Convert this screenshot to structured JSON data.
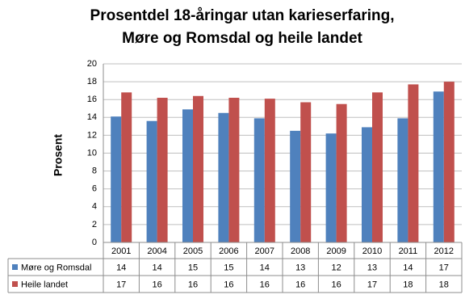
{
  "chart_data": {
    "type": "bar",
    "title": [
      "Prosentdel 18-åringar utan karieserfaring,",
      "Møre og Romsdal og heile landet"
    ],
    "y_label": "Prosent",
    "categories": [
      "2001",
      "2004",
      "2005",
      "2006",
      "2007",
      "2008",
      "2009",
      "2010",
      "2011",
      "2012"
    ],
    "series": [
      {
        "name": "Møre og Romsdal",
        "color": "#4f81bd",
        "values": [
          14.1,
          13.6,
          14.9,
          14.5,
          13.9,
          12.5,
          12.2,
          12.9,
          13.9,
          16.9
        ],
        "value_labels": [
          "14",
          "14",
          "15",
          "15",
          "14",
          "13",
          "12",
          "13",
          "14",
          "17"
        ]
      },
      {
        "name": "Heile landet",
        "color": "#c0504d",
        "values": [
          16.8,
          16.2,
          16.4,
          16.2,
          16.1,
          15.7,
          15.5,
          16.8,
          17.7,
          18.0
        ],
        "value_labels": [
          "17",
          "16",
          "16",
          "16",
          "16",
          "16",
          "16",
          "17",
          "18",
          "18"
        ]
      }
    ],
    "ylim": [
      0,
      20
    ],
    "yticks": [
      0,
      2,
      4,
      6,
      8,
      10,
      12,
      14,
      16,
      18,
      20
    ],
    "grid": true
  }
}
